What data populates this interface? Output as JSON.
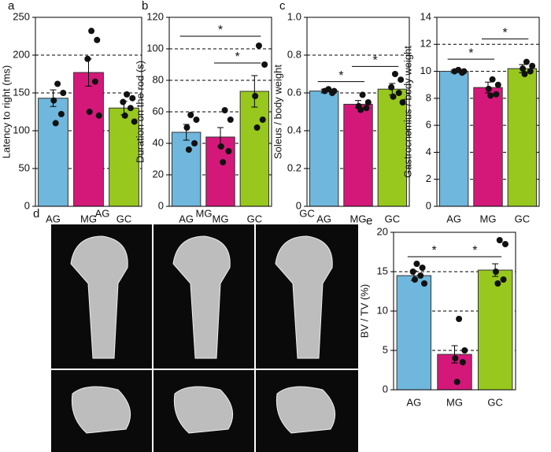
{
  "chart_data": [
    {
      "type": "bar",
      "panel": "a",
      "ylabel": "Latency to right (ms)",
      "categories": [
        "AG",
        "MG",
        "GC"
      ],
      "colors": [
        "#6fb7dc",
        "#d4187a",
        "#98c81e"
      ],
      "values": [
        143,
        177,
        130
      ],
      "errors": [
        11,
        18,
        9
      ],
      "points": [
        [
          162,
          150,
          140,
          122,
          110
        ],
        [
          232,
          220,
          195,
          165,
          125,
          120
        ],
        [
          148,
          143,
          138,
          130,
          120,
          112
        ]
      ],
      "ylim": [
        0,
        250
      ],
      "yticks": [
        0,
        50,
        100,
        150,
        200,
        250
      ],
      "grid": "dashed",
      "annotations": []
    },
    {
      "type": "bar",
      "panel": "b",
      "ylabel": "Duration on the rod (s)",
      "categories": [
        "AG",
        "MG",
        "GC"
      ],
      "colors": [
        "#6fb7dc",
        "#d4187a",
        "#98c81e"
      ],
      "values": [
        47,
        44,
        73
      ],
      "errors": [
        5,
        6,
        10
      ],
      "points": [
        [
          58,
          55,
          50,
          40,
          36
        ],
        [
          61,
          55,
          38,
          35,
          28
        ],
        [
          102,
          90,
          70,
          55,
          50
        ]
      ],
      "ylim": [
        0,
        120
      ],
      "yticks": [
        0,
        20,
        40,
        60,
        80,
        100,
        120
      ],
      "grid": "dashed",
      "annotations": [
        {
          "label": "*",
          "from": 0,
          "to": 2,
          "y": 108
        },
        {
          "label": "*",
          "from": 1,
          "to": 2,
          "y": 91
        }
      ]
    },
    {
      "type": "bar",
      "panel": "c",
      "ylabel": "Soleus / body weight",
      "categories": [
        "AG",
        "MG",
        "GC"
      ],
      "colors": [
        "#6fb7dc",
        "#d4187a",
        "#98c81e"
      ],
      "values": [
        0.61,
        0.54,
        0.62
      ],
      "errors": [
        0.01,
        0.02,
        0.03
      ],
      "points": [
        [
          0.62,
          0.61,
          0.61,
          0.6
        ],
        [
          0.59,
          0.55,
          0.53,
          0.52,
          0.51
        ],
        [
          0.7,
          0.67,
          0.63,
          0.6,
          0.58,
          0.55
        ]
      ],
      "ylim": [
        0,
        1
      ],
      "yticks": [
        0,
        0.2,
        0.4,
        0.6,
        0.8,
        {
          "value": 1,
          "label": "1.0"
        }
      ],
      "grid": "dashed",
      "annotations": [
        {
          "label": "*",
          "from": 0,
          "to": 1,
          "y": 0.66
        },
        {
          "label": "*",
          "from": 1,
          "to": 2,
          "y": 0.74
        }
      ]
    },
    {
      "type": "bar",
      "ylabel": "Gastrocnemius / body weight",
      "categories": [
        "AG",
        "MG",
        "GC"
      ],
      "colors": [
        "#6fb7dc",
        "#d4187a",
        "#98c81e"
      ],
      "values": [
        10.0,
        8.8,
        10.2
      ],
      "errors": [
        0.1,
        0.4,
        0.3
      ],
      "points": [
        [
          10.1,
          10,
          10,
          9.9
        ],
        [
          9.4,
          9.0,
          8.7,
          8.3,
          8.2
        ],
        [
          10.7,
          10.4,
          10.2,
          10.0,
          9.8
        ]
      ],
      "ylim": [
        0,
        14
      ],
      "yticks": [
        0,
        2,
        4,
        6,
        8,
        10,
        12,
        14
      ],
      "grid": "dashed",
      "annotations": [
        {
          "label": "*",
          "from": 0,
          "to": 1,
          "y": 10.9
        },
        {
          "label": "*",
          "from": 1,
          "to": 2,
          "y": 12.4
        }
      ]
    },
    {
      "type": "bar",
      "panel": "e",
      "ylabel": "BV / TV (%)",
      "categories": [
        "AG",
        "MG",
        "GC"
      ],
      "colors": [
        "#6fb7dc",
        "#d4187a",
        "#98c81e"
      ],
      "values": [
        14.5,
        4.5,
        15.2
      ],
      "errors": [
        0.6,
        1.1,
        0.8
      ],
      "points": [
        [
          16,
          15.5,
          15,
          14.5,
          14,
          13.5
        ],
        [
          9,
          5,
          4,
          3.5,
          1
        ],
        [
          19,
          18.5,
          15,
          14,
          13.5
        ]
      ],
      "ylim": [
        0,
        20
      ],
      "yticks": [
        0,
        5,
        10,
        15,
        20
      ],
      "grid": "dashed",
      "annotations": [
        {
          "label": "*",
          "from": 0,
          "to": 1,
          "y": 16.9
        },
        {
          "label": "*",
          "from": 1,
          "to": 2,
          "y": 16.9
        }
      ]
    }
  ],
  "panel_d": {
    "label": "d",
    "columns": [
      "AG",
      "MG",
      "GC"
    ]
  }
}
